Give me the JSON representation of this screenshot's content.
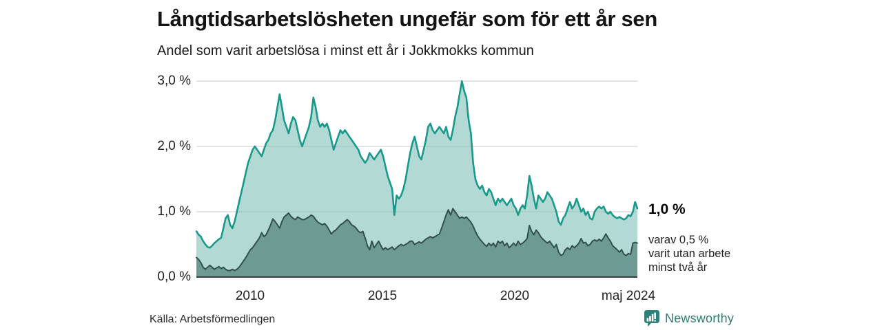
{
  "header": {
    "title": "Långtidsarbetslösheten ungefär som för ett år sen",
    "subtitle": "Andel som varit arbetslösa i minst ett år i Jokkmokks kommun"
  },
  "colors": {
    "accent_teal": "#18998b",
    "light_fill": "#b2d9d3",
    "dark_fill": "#6e9a94",
    "dark_line": "#32504b",
    "grid": "#e0e0e0",
    "grid_overlay": "rgba(70,70,70,0.15)",
    "axis": "#3c3c3c",
    "brand_teal": "#2e7f77"
  },
  "chart_data": {
    "type": "area",
    "title": "Långtidsarbetslösheten ungefär som för ett år sen",
    "subtitle": "Andel som varit arbetslösa i minst ett år i Jokkmokks kommun",
    "grid": "horizontal-only",
    "x_unit": "month",
    "x_range": [
      "jan 2008",
      "maj 2024"
    ],
    "xlim": [
      2008.0,
      2024.417
    ],
    "ylim": [
      0,
      3.0
    ],
    "x_ticks": [
      {
        "value": 2010,
        "label": "2010"
      },
      {
        "value": 2015,
        "label": "2015"
      },
      {
        "value": 2020,
        "label": "2020"
      },
      {
        "value": 2024.333,
        "label": "maj 2024"
      }
    ],
    "y_ticks": [
      {
        "value": 0,
        "label": "0,0 %"
      },
      {
        "value": 1,
        "label": "1,0 %"
      },
      {
        "value": 2,
        "label": "2,0 %"
      },
      {
        "value": 3,
        "label": "3,0 %"
      }
    ],
    "annotations": {
      "end_label_primary": "1,0 %",
      "end_label_secondary": [
        "varav 0,5 %",
        "varit utan arbete",
        "minst två år"
      ]
    },
    "series": [
      {
        "name": "Arbetslösa minst ett år",
        "end_value_pct": 1.0,
        "values": [
          0.7,
          0.65,
          0.62,
          0.55,
          0.5,
          0.46,
          0.45,
          0.48,
          0.52,
          0.55,
          0.58,
          0.6,
          0.75,
          0.9,
          0.95,
          0.8,
          0.75,
          0.85,
          1.0,
          1.15,
          1.3,
          1.45,
          1.6,
          1.75,
          1.85,
          1.95,
          2.0,
          1.95,
          1.9,
          1.85,
          1.95,
          2.05,
          2.1,
          2.2,
          2.25,
          2.4,
          2.6,
          2.8,
          2.6,
          2.4,
          2.3,
          2.2,
          2.35,
          2.45,
          2.4,
          2.25,
          2.1,
          2.0,
          2.1,
          2.2,
          2.3,
          2.45,
          2.75,
          2.6,
          2.4,
          2.3,
          2.35,
          2.3,
          2.35,
          2.25,
          2.1,
          1.95,
          2.05,
          2.15,
          2.25,
          2.2,
          2.25,
          2.2,
          2.15,
          2.1,
          2.05,
          2.0,
          1.95,
          1.85,
          1.8,
          1.75,
          1.8,
          1.9,
          1.85,
          1.8,
          1.85,
          1.9,
          1.95,
          1.85,
          1.7,
          1.55,
          1.45,
          1.35,
          0.95,
          1.25,
          1.2,
          1.25,
          1.35,
          1.5,
          1.7,
          1.9,
          2.05,
          2.15,
          2.0,
          1.85,
          1.8,
          1.95,
          2.1,
          2.3,
          2.35,
          2.25,
          2.2,
          2.25,
          2.3,
          2.25,
          2.2,
          2.3,
          2.15,
          2.1,
          2.25,
          2.45,
          2.6,
          2.8,
          3.0,
          2.85,
          2.75,
          2.4,
          2.2,
          1.75,
          1.5,
          1.4,
          1.35,
          1.4,
          1.3,
          1.25,
          1.35,
          1.3,
          1.2,
          1.1,
          1.2,
          1.15,
          1.2,
          1.15,
          1.1,
          1.15,
          1.2,
          1.1,
          1.05,
          0.95,
          1.05,
          1.1,
          1.05,
          1.25,
          1.55,
          1.4,
          1.2,
          1.05,
          1.25,
          1.2,
          1.15,
          1.2,
          1.3,
          1.25,
          1.2,
          1.1,
          1.0,
          0.85,
          0.8,
          0.9,
          0.95,
          1.05,
          1.15,
          1.05,
          1.1,
          1.2,
          1.1,
          1.0,
          1.05,
          0.95,
          1.0,
          0.9,
          0.88,
          1.0,
          1.05,
          1.08,
          1.05,
          1.08,
          1.0,
          0.97,
          1.0,
          0.95,
          0.92,
          0.9,
          0.92,
          0.9,
          0.88,
          0.9,
          0.95,
          0.93,
          1.0,
          1.15,
          1.05
        ]
      },
      {
        "name": "varav utan arbete minst två år",
        "end_value_pct": 0.5,
        "values": [
          0.3,
          0.27,
          0.22,
          0.15,
          0.12,
          0.15,
          0.18,
          0.15,
          0.12,
          0.14,
          0.16,
          0.13,
          0.15,
          0.12,
          0.1,
          0.1,
          0.12,
          0.1,
          0.12,
          0.15,
          0.2,
          0.25,
          0.3,
          0.36,
          0.42,
          0.45,
          0.5,
          0.55,
          0.6,
          0.68,
          0.62,
          0.65,
          0.72,
          0.8,
          0.89,
          0.85,
          0.8,
          0.75,
          0.85,
          0.92,
          0.95,
          0.98,
          0.93,
          0.9,
          0.88,
          0.92,
          0.9,
          0.88,
          0.88,
          0.9,
          0.92,
          0.95,
          0.93,
          0.88,
          0.84,
          0.82,
          0.8,
          0.82,
          0.78,
          0.72,
          0.66,
          0.7,
          0.72,
          0.76,
          0.8,
          0.82,
          0.85,
          0.88,
          0.85,
          0.8,
          0.78,
          0.75,
          0.7,
          0.68,
          0.7,
          0.6,
          0.48,
          0.42,
          0.55,
          0.45,
          0.5,
          0.55,
          0.48,
          0.42,
          0.45,
          0.42,
          0.44,
          0.46,
          0.42,
          0.45,
          0.48,
          0.5,
          0.48,
          0.5,
          0.52,
          0.55,
          0.55,
          0.5,
          0.52,
          0.54,
          0.52,
          0.55,
          0.58,
          0.6,
          0.62,
          0.6,
          0.62,
          0.64,
          0.66,
          0.75,
          0.85,
          0.95,
          1.03,
          0.95,
          1.05,
          1.0,
          0.95,
          0.9,
          0.92,
          0.9,
          0.92,
          0.88,
          0.84,
          0.78,
          0.7,
          0.63,
          0.58,
          0.54,
          0.5,
          0.47,
          0.52,
          0.48,
          0.52,
          0.46,
          0.55,
          0.52,
          0.55,
          0.48,
          0.52,
          0.45,
          0.48,
          0.52,
          0.48,
          0.55,
          0.5,
          0.52,
          0.55,
          0.59,
          0.79,
          0.7,
          0.65,
          0.72,
          0.68,
          0.62,
          0.58,
          0.55,
          0.52,
          0.55,
          0.5,
          0.45,
          0.5,
          0.38,
          0.33,
          0.35,
          0.42,
          0.45,
          0.42,
          0.48,
          0.45,
          0.48,
          0.52,
          0.59,
          0.52,
          0.53,
          0.48,
          0.5,
          0.55,
          0.57,
          0.55,
          0.58,
          0.55,
          0.6,
          0.66,
          0.6,
          0.55,
          0.48,
          0.45,
          0.42,
          0.38,
          0.42,
          0.35,
          0.33,
          0.36,
          0.35,
          0.52,
          0.53,
          0.52
        ]
      }
    ]
  },
  "footer": {
    "source": "Källa: Arbetsförmedlingen",
    "brand": "Newsworthy"
  }
}
